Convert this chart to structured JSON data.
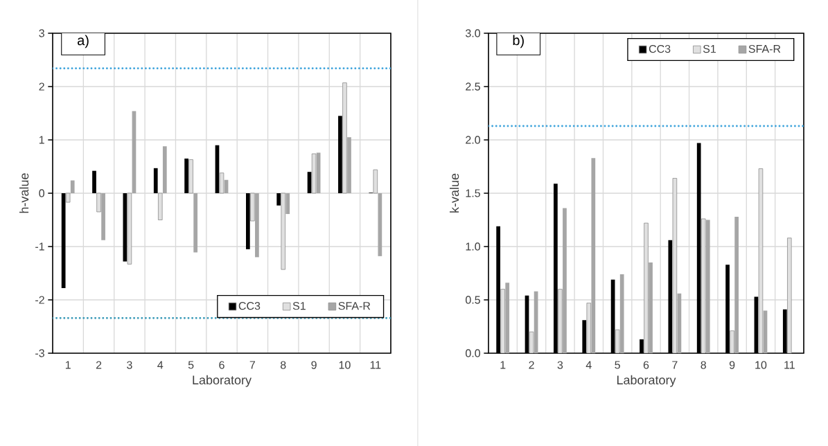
{
  "chart_data": [
    {
      "type": "bar",
      "categories": [
        "1",
        "2",
        "3",
        "4",
        "5",
        "6",
        "7",
        "8",
        "9",
        "10",
        "11"
      ],
      "xlabel": "Laboratory",
      "ylabel": "h-value",
      "ylim": [
        -3,
        3
      ],
      "yticks": [
        -3,
        -2,
        -1,
        0,
        1,
        2,
        3
      ],
      "grid": true,
      "legend": "bottom right",
      "annotations": [
        "a)"
      ],
      "series": [
        {
          "name": "CC3",
          "color": "#000000",
          "values": [
            -1.78,
            0.42,
            -1.28,
            0.47,
            0.65,
            0.9,
            -1.05,
            -0.23,
            0.4,
            1.45,
            0.01
          ]
        },
        {
          "name": "S1",
          "color": "#e0e0e0",
          "values": [
            -0.17,
            -0.35,
            -1.33,
            -0.5,
            0.63,
            0.38,
            -0.52,
            -1.43,
            0.74,
            2.07,
            0.44
          ]
        },
        {
          "name": "SFA-R",
          "color": "#a6a6a6",
          "values": [
            0.24,
            -0.88,
            1.54,
            0.88,
            -1.11,
            0.25,
            -1.2,
            -0.39,
            0.76,
            1.05,
            -1.18
          ]
        }
      ],
      "ref_lines": [
        {
          "axis": "y",
          "value": 2.34,
          "color": "#41a5dc",
          "line_style": "dotted"
        },
        {
          "axis": "y",
          "value": -2.34,
          "color": "#3a9ab8",
          "line_style": "dotted"
        }
      ]
    },
    {
      "type": "bar",
      "categories": [
        "1",
        "2",
        "3",
        "4",
        "5",
        "6",
        "7",
        "8",
        "9",
        "10",
        "11"
      ],
      "xlabel": "Laboratory",
      "ylabel": "k-value",
      "ylim": [
        0,
        3
      ],
      "yticks": [
        {
          "value": 0,
          "label": "0.0"
        },
        {
          "value": 0.5,
          "label": "0.5"
        },
        {
          "value": 1,
          "label": "1.0"
        },
        {
          "value": 1.5,
          "label": "1.5"
        },
        {
          "value": 2,
          "label": "2.0"
        },
        {
          "value": 2.5,
          "label": "2.5"
        },
        {
          "value": 3,
          "label": "3.0"
        }
      ],
      "grid": true,
      "legend": "top right",
      "annotations": [
        "b)"
      ],
      "series": [
        {
          "name": "CC3",
          "color": "#000000",
          "values": [
            1.19,
            0.54,
            1.59,
            0.31,
            0.69,
            0.13,
            1.06,
            1.97,
            0.83,
            0.53,
            0.41
          ]
        },
        {
          "name": "S1",
          "color": "#e0e0e0",
          "values": [
            0.6,
            0.2,
            0.6,
            0.47,
            0.22,
            1.22,
            1.64,
            1.26,
            0.21,
            1.73,
            1.08
          ]
        },
        {
          "name": "SFA-R",
          "color": "#a6a6a6",
          "values": [
            0.66,
            0.58,
            1.36,
            1.83,
            0.74,
            0.85,
            0.56,
            1.25,
            1.28,
            0.4,
            0.0
          ]
        }
      ],
      "ref_lines": [
        {
          "axis": "y",
          "value": 2.13,
          "color": "#41a5dc",
          "line_style": "dotted"
        }
      ]
    }
  ]
}
